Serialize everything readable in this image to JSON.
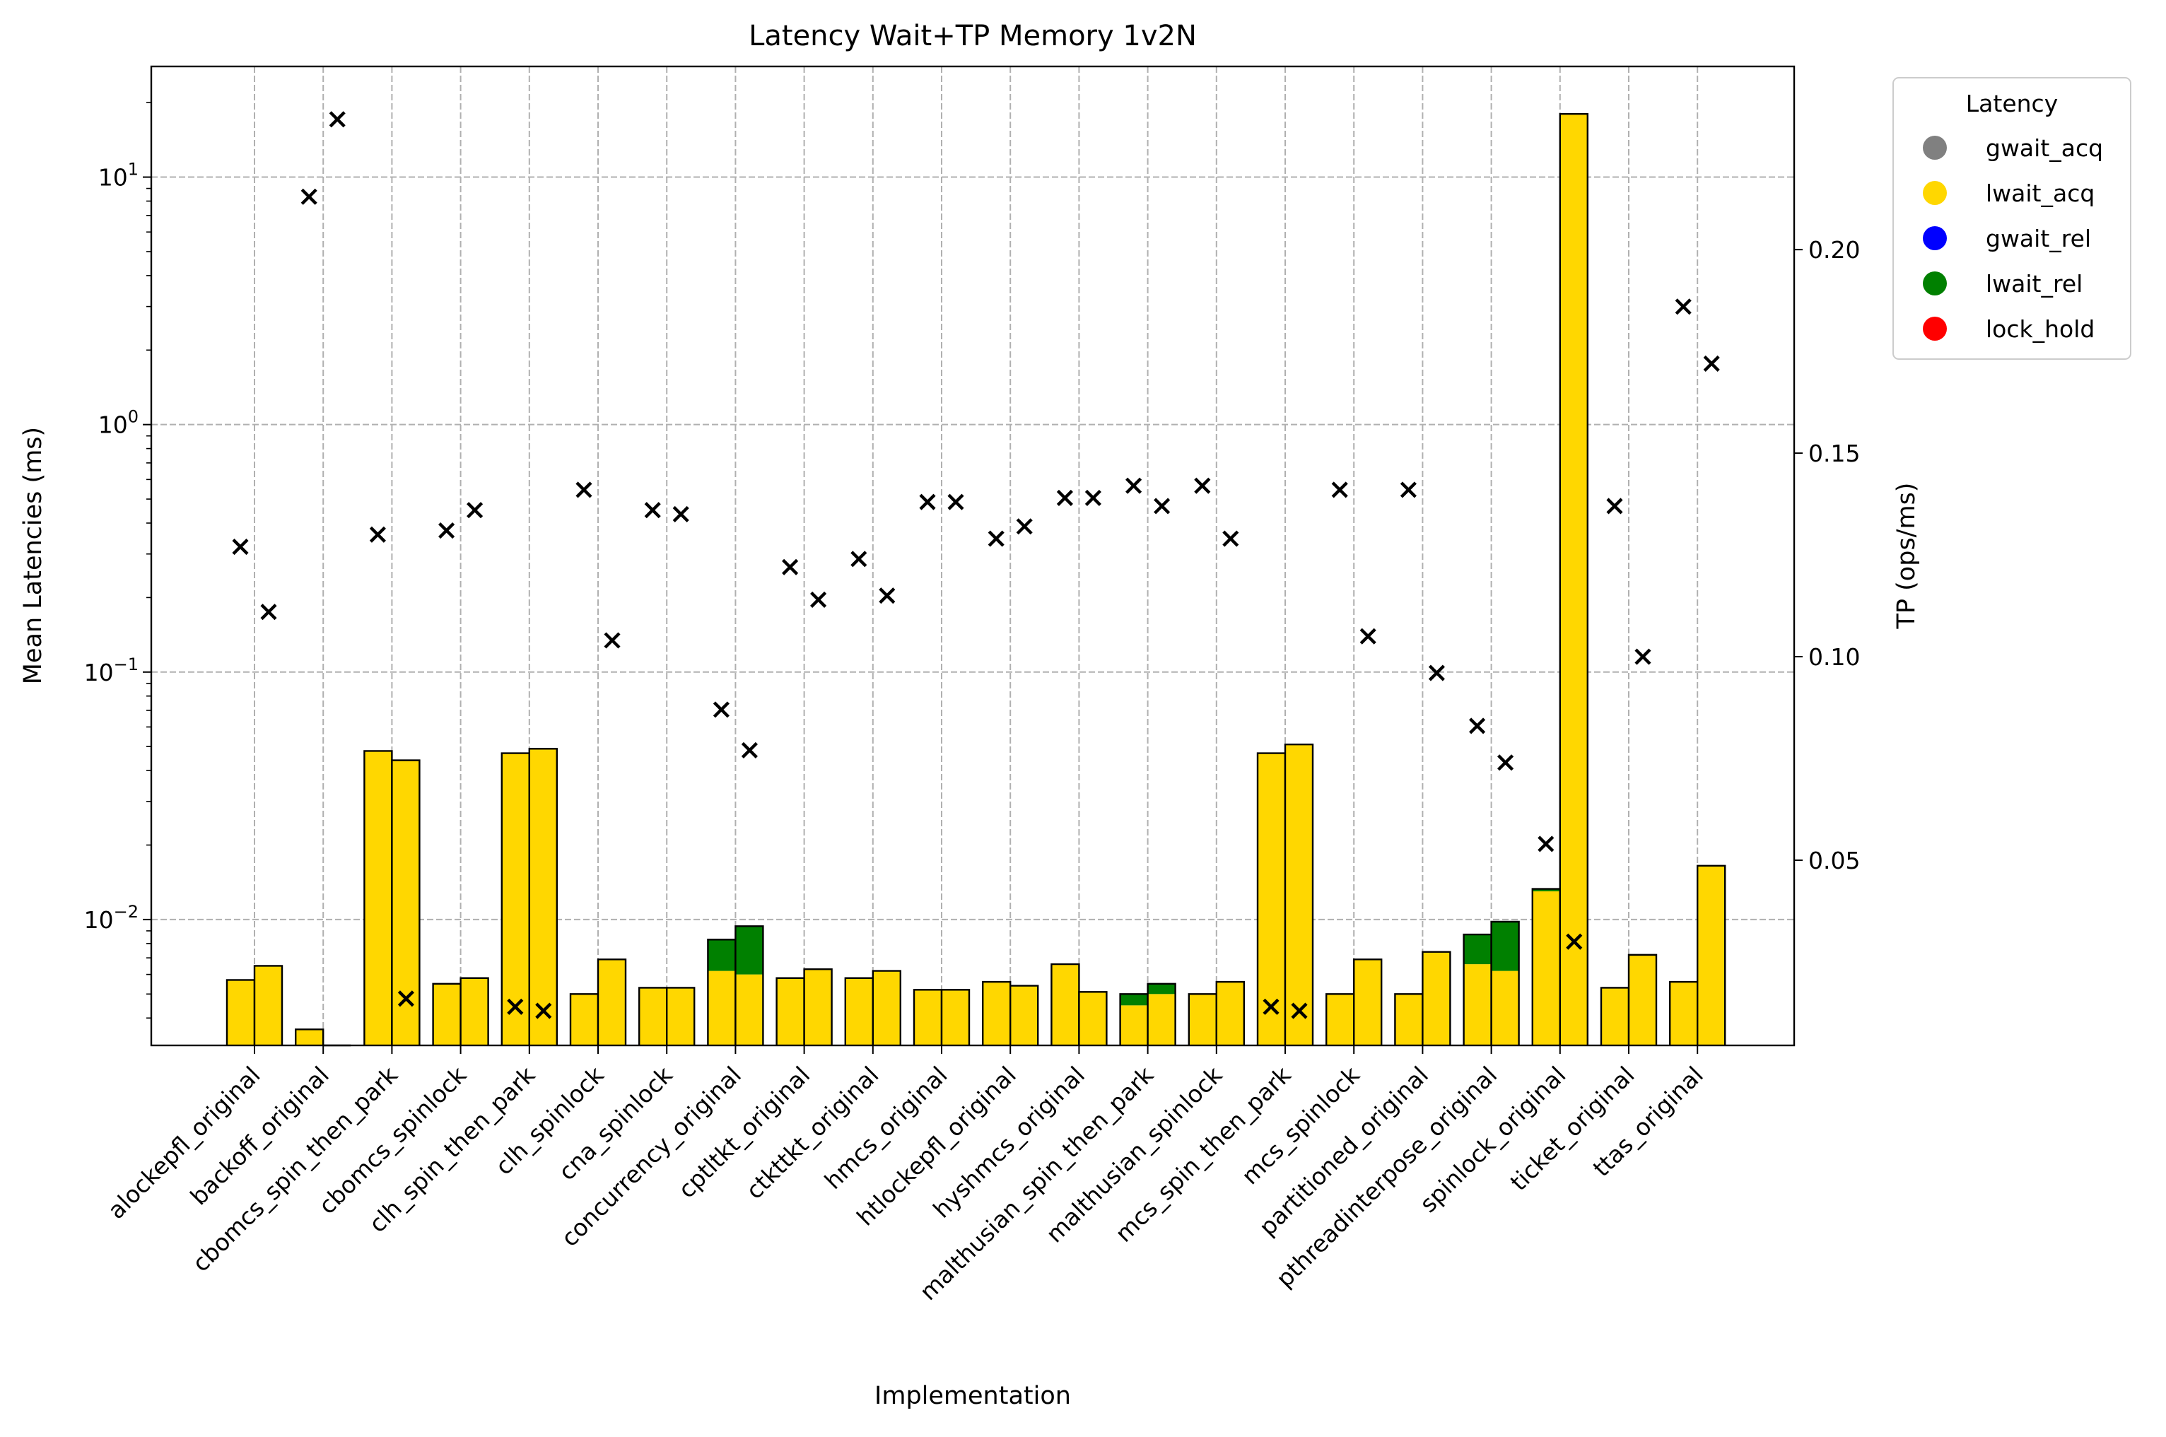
{
  "chart_data": {
    "type": "bar",
    "title": "Latency Wait+TP Memory 1v2N",
    "xlabel": "Implementation",
    "ylabel": "Mean Latencies (ms)",
    "y2label": "TP (ops/ms)",
    "yscale": "log",
    "ylim": [
      0.0031,
      28
    ],
    "y2lim": [
      0.0045,
      0.245
    ],
    "y_ticks": [
      {
        "value": 0.01,
        "base": "10",
        "exp": "−2"
      },
      {
        "value": 0.1,
        "base": "10",
        "exp": "−1"
      },
      {
        "value": 1,
        "base": "10",
        "exp": "0"
      },
      {
        "value": 10,
        "base": "10",
        "exp": "1"
      }
    ],
    "y2_ticks": [
      "0.05",
      "0.10",
      "0.15",
      "0.20"
    ],
    "grid": true,
    "categories": [
      "alockepfl_original",
      "backoff_original",
      "cbomcs_spin_then_park",
      "cbomcs_spinlock",
      "clh_spin_then_park",
      "clh_spinlock",
      "cna_spinlock",
      "concurrency_original",
      "cptltkt_original",
      "ctkttkt_original",
      "hmcs_original",
      "htlockepfl_original",
      "hyshmcs_original",
      "malthusian_spin_then_park",
      "malthusian_spinlock",
      "mcs_spin_then_park",
      "mcs_spinlock",
      "partitioned_original",
      "pthreadinterpose_original",
      "spinlock_original",
      "ticket_original",
      "ttas_original"
    ],
    "series_groups": [
      "group 1",
      "group 2"
    ],
    "series": [
      {
        "name": "lwait_acq",
        "color": "#FFD700",
        "group1": [
          0.0057,
          0.0036,
          0.048,
          0.0055,
          0.047,
          0.005,
          0.0053,
          0.0062,
          0.0058,
          0.0058,
          0.0052,
          0.0056,
          0.0066,
          0.0045,
          0.005,
          0.047,
          0.005,
          0.005,
          0.0066,
          0.013,
          0.0053,
          0.0056
        ],
        "group2": [
          0.0065,
          0.0031,
          0.044,
          0.0058,
          0.049,
          0.0069,
          0.0053,
          0.006,
          0.0063,
          0.0062,
          0.0052,
          0.0054,
          0.0051,
          0.005,
          0.0056,
          0.051,
          0.0069,
          0.0074,
          0.0062,
          18,
          0.0072,
          0.0165
        ]
      },
      {
        "name": "lwait_rel",
        "color": "#008000",
        "group1": [
          0,
          0,
          0,
          0,
          0,
          0,
          0,
          0.0021,
          0,
          0,
          0,
          0,
          0,
          0.0005,
          0,
          0,
          0,
          0,
          0.0021,
          0.0003,
          0,
          0
        ],
        "group2": [
          0,
          0,
          0,
          0,
          0,
          0,
          0,
          0.0034,
          0,
          0,
          0,
          0,
          0,
          0.0005,
          0,
          0,
          0,
          0,
          0.0036,
          0,
          0,
          0
        ]
      },
      {
        "name": "gwait_acq",
        "color": "#808080",
        "group1": [],
        "group2": []
      },
      {
        "name": "gwait_rel",
        "color": "#0000FF",
        "group1": [],
        "group2": []
      },
      {
        "name": "lock_hold",
        "color": "#FF0000",
        "group1": [],
        "group2": []
      }
    ],
    "throughput": {
      "name": "TP",
      "marker": "x",
      "group1": [
        0.127,
        0.213,
        0.13,
        0.131,
        0.014,
        0.141,
        0.136,
        0.087,
        0.122,
        0.124,
        0.138,
        0.129,
        0.139,
        0.142,
        0.142,
        0.014,
        0.141,
        0.141,
        0.083,
        0.054,
        0.137,
        0.186
      ],
      "group2": [
        0.111,
        0.232,
        0.016,
        0.136,
        0.013,
        0.104,
        0.135,
        0.077,
        0.114,
        0.115,
        0.138,
        0.132,
        0.139,
        0.137,
        0.129,
        0.013,
        0.105,
        0.096,
        0.074,
        0.03,
        0.1,
        0.172
      ]
    },
    "legend": {
      "title": "Latency",
      "placement": "outside-right",
      "entries": [
        {
          "label": "gwait_acq",
          "color": "#808080"
        },
        {
          "label": "lwait_acq",
          "color": "#FFD700"
        },
        {
          "label": "gwait_rel",
          "color": "#0000FF"
        },
        {
          "label": "lwait_rel",
          "color": "#008000"
        },
        {
          "label": "lock_hold",
          "color": "#FF0000"
        }
      ]
    }
  }
}
